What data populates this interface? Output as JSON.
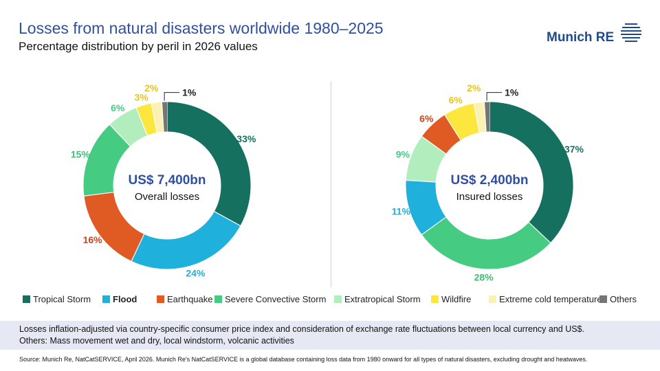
{
  "header": {
    "title": "Losses from natural disasters worldwide 1980–2025",
    "subtitle": "Percentage distribution by peril in 2026 values",
    "logo_text": "Munich RE"
  },
  "colors": {
    "Tropical Storm": "#16705f",
    "Flood": "#1fb1db",
    "Earthquake": "#e05a24",
    "Severe Convective Storm": "#46cc82",
    "Extratropical Storm": "#b1edbd",
    "Wildfire": "#fde73e",
    "Extreme cold temperature": "#fbf1b2",
    "Others": "#757575"
  },
  "chart_data": [
    {
      "type": "pie",
      "center_value": "US$ 7,400bn",
      "center_label": "Overall losses",
      "categories": [
        "Tropical Storm",
        "Flood",
        "Earthquake",
        "Severe Convective Storm",
        "Extratropical Storm",
        "Wildfire",
        "Extreme cold temperature",
        "Others"
      ],
      "values": [
        33,
        24,
        16,
        15,
        6,
        3,
        2,
        1
      ],
      "labels": [
        "33%",
        "24%",
        "16%",
        "15%",
        "6%",
        "3%",
        "2%",
        "1%"
      ],
      "label_colors": [
        "#16705f",
        "#1fb1db",
        "#c9431c",
        "#3fbf74",
        "#46cc82",
        "#e6c619",
        "#e6c619",
        "#222222"
      ]
    },
    {
      "type": "pie",
      "center_value": "US$ 2,400bn",
      "center_label": "Insured losses",
      "categories": [
        "Tropical Storm",
        "Severe Convective Storm",
        "Flood",
        "Extratropical Storm",
        "Earthquake",
        "Wildfire",
        "Extreme cold temperature",
        "Others"
      ],
      "values": [
        37,
        28,
        11,
        9,
        6,
        6,
        2,
        1
      ],
      "labels": [
        "37%",
        "28%",
        "11%",
        "9%",
        "6%",
        "6%",
        "2%",
        "1%"
      ],
      "label_colors": [
        "#16705f",
        "#3fbf74",
        "#1fb1db",
        "#46cc82",
        "#c9431c",
        "#e6c619",
        "#e6c619",
        "#222222"
      ]
    }
  ],
  "legend": [
    "Tropical Storm",
    "Flood",
    "Earthquake",
    "Severe Convective Storm",
    "Extratropical Storm",
    "Wildfire",
    "Extreme cold temperature",
    "Others"
  ],
  "notes": {
    "line1": "Losses inflation-adjusted via country-specific consumer price index and consideration of exchange rate fluctuations between local currency and US$.",
    "line2": "Others: Mass movement wet and dry, local windstorm, volcanic activities"
  },
  "source": "Source: Munich Re, NatCatSERVICE, April 2026.   Munich Re's NatCatSERVICE is a global database containing loss data from 1980 onward for all types of natural disasters, excluding drought and heatwaves."
}
